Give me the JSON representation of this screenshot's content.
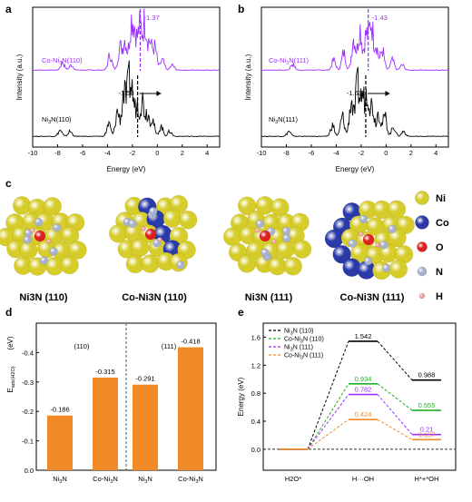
{
  "colors": {
    "purple": "#9b30ff",
    "black": "#000000",
    "orange": "#f08a24",
    "green": "#22b022",
    "ni_yellow": "#d6cc2a",
    "co_blue": "#2a3aa8",
    "o_red": "#e02020",
    "n_gray": "#a8b2cc",
    "h_pink": "#f0a0a0"
  },
  "panels": {
    "a": {
      "label": "a"
    },
    "b": {
      "label": "b"
    },
    "c": {
      "label": "c"
    },
    "d": {
      "label": "d"
    },
    "e": {
      "label": "e"
    }
  },
  "structures": {
    "labels": [
      "Ni3N (110)",
      "Co-Ni3N (110)",
      "Ni3N (111)",
      "Co-Ni3N (111)"
    ],
    "legend": [
      {
        "element": "Ni",
        "color": "#d6cc2a"
      },
      {
        "element": "Co",
        "color": "#2a3aa8"
      },
      {
        "element": "O",
        "color": "#e02020"
      },
      {
        "element": "N",
        "color": "#a8b2cc"
      },
      {
        "element": "H",
        "color": "#f0a0a0"
      }
    ]
  },
  "chart_data": [
    {
      "type": "line",
      "panel": "a",
      "xlabel": "Energy (eV)",
      "ylabel": "Intensity (a.u.)",
      "xlim": [
        -10,
        5
      ],
      "xticks": [
        -10,
        -8,
        -6,
        -4,
        -2,
        0,
        2,
        4
      ],
      "series": [
        {
          "name": "Co-Ni3N(110)",
          "color": "#9b30ff",
          "band_center": -1.37,
          "band_center_label": "-1.37",
          "peaks": [
            [
              -7.6,
              0.15
            ],
            [
              -6.9,
              0.1
            ],
            [
              -3.8,
              0.3
            ],
            [
              -3.0,
              0.45
            ],
            [
              -2.6,
              0.6
            ],
            [
              -2.1,
              0.9
            ],
            [
              -1.8,
              0.7
            ],
            [
              -1.4,
              0.85
            ],
            [
              -1.0,
              0.95
            ],
            [
              -0.6,
              0.55
            ],
            [
              -0.2,
              0.45
            ],
            [
              0.4,
              0.2
            ],
            [
              1.2,
              0.1
            ]
          ]
        },
        {
          "name": "Ni3N(110)",
          "color": "#000000",
          "band_center": -1.58,
          "band_center_label": "-1.58",
          "peaks": [
            [
              -7.8,
              0.12
            ],
            [
              -7.0,
              0.1
            ],
            [
              -3.9,
              0.25
            ],
            [
              -3.2,
              0.5
            ],
            [
              -2.7,
              0.85
            ],
            [
              -2.3,
              0.95
            ],
            [
              -2.0,
              0.75
            ],
            [
              -1.6,
              0.6
            ],
            [
              -1.2,
              0.7
            ],
            [
              -0.8,
              0.45
            ],
            [
              -0.4,
              0.35
            ],
            [
              0.3,
              0.2
            ],
            [
              1.0,
              0.1
            ]
          ]
        }
      ]
    },
    {
      "type": "line",
      "panel": "b",
      "xlabel": "Energy (eV)",
      "ylabel": "Intensity (a.u.)",
      "xlim": [
        -10,
        5
      ],
      "xticks": [
        -10,
        -8,
        -6,
        -4,
        -2,
        0,
        2,
        4
      ],
      "series": [
        {
          "name": "Co-Ni3N(111)",
          "color": "#9b30ff",
          "band_center": -1.43,
          "band_center_label": "-1.43",
          "peaks": [
            [
              -7.5,
              0.12
            ],
            [
              -4.2,
              0.2
            ],
            [
              -3.4,
              0.35
            ],
            [
              -2.6,
              0.65
            ],
            [
              -2.1,
              0.85
            ],
            [
              -1.6,
              0.7
            ],
            [
              -1.2,
              0.95
            ],
            [
              -0.8,
              0.5
            ],
            [
              -0.3,
              0.4
            ],
            [
              0.5,
              0.2
            ],
            [
              1.3,
              0.1
            ]
          ]
        },
        {
          "name": "Ni3N(111)",
          "color": "#000000",
          "band_center": -1.63,
          "band_center_label": "-1.63",
          "peaks": [
            [
              -7.8,
              0.1
            ],
            [
              -4.3,
              0.22
            ],
            [
              -3.5,
              0.4
            ],
            [
              -2.8,
              0.7
            ],
            [
              -2.3,
              1.0
            ],
            [
              -1.9,
              0.8
            ],
            [
              -1.5,
              0.9
            ],
            [
              -1.1,
              0.6
            ],
            [
              -0.6,
              0.5
            ],
            [
              -0.1,
              0.4
            ],
            [
              0.6,
              0.2
            ],
            [
              1.4,
              0.1
            ]
          ]
        }
      ]
    },
    {
      "type": "bar",
      "panel": "d",
      "ylabel": "E_ads(H2O)",
      "ylabel_main": "E",
      "ylabel_sub": "ads(H2O)",
      "unit_label": "(eV)",
      "ylim": [
        0,
        -0.5
      ],
      "yticks": [
        "0.0",
        "-0.1",
        "-0.2",
        "-0.3",
        "-0.4"
      ],
      "groups": [
        "(110)",
        "(111)"
      ],
      "categories": [
        "Ni3N",
        "Co-Ni3N",
        "Ni3N",
        "Co-Ni3N"
      ],
      "values": [
        -0.186,
        -0.315,
        -0.291,
        -0.418
      ],
      "value_labels": [
        "-0.186",
        "-0.315",
        "-0.291",
        "-0.418"
      ],
      "color": "#f08a24"
    },
    {
      "type": "line",
      "panel": "e",
      "ylabel": "Energy (eV)",
      "ylim": [
        -0.3,
        1.8
      ],
      "yticks": [
        "0.0",
        "0.4",
        "0.8",
        "1.2",
        "1.6"
      ],
      "categories": [
        "H2O*",
        "H···OH",
        "H*+*OH"
      ],
      "series": [
        {
          "name": "Ni3N (110)",
          "color": "#000000",
          "values": [
            0,
            1.542,
            0.988
          ],
          "labels": [
            "",
            "1.542",
            "0.988"
          ]
        },
        {
          "name": "Co-Ni3N (110)",
          "color": "#22b022",
          "values": [
            0,
            0.934,
            0.555
          ],
          "labels": [
            "",
            "0.934",
            "0.555"
          ]
        },
        {
          "name": "Ni3N (111)",
          "color": "#9b30ff",
          "values": [
            0,
            0.782,
            0.21
          ],
          "labels": [
            "",
            "0.782",
            "0.21"
          ]
        },
        {
          "name": "Co-Ni3N (111)",
          "color": "#f08a24",
          "values": [
            0,
            0.424,
            0.137
          ],
          "labels": [
            "",
            "0.424",
            "0.137"
          ]
        }
      ]
    }
  ]
}
